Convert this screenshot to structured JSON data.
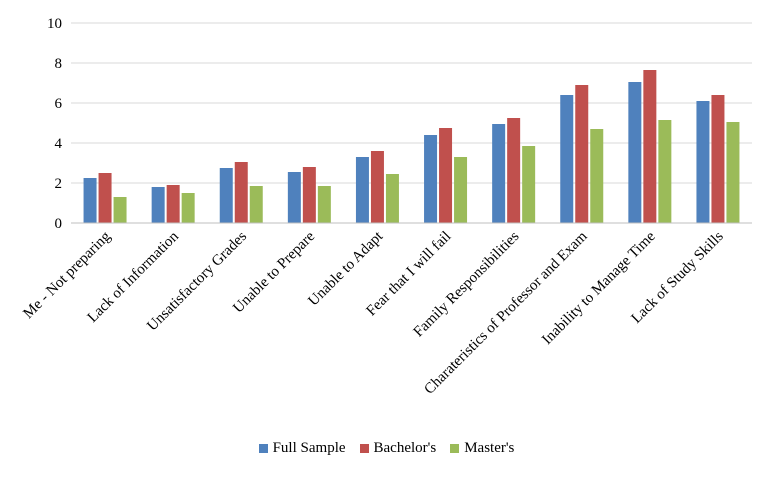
{
  "chart_data": {
    "type": "bar",
    "title": "",
    "xlabel": "",
    "ylabel": "",
    "ylim": [
      0,
      10
    ],
    "yticks": [
      "0",
      "2",
      "4",
      "6",
      "8",
      "10"
    ],
    "grid": true,
    "legend_position": "bottom",
    "categories": [
      "Me - Not preparing",
      "Lack of Information",
      "Unsatisfactory Grades",
      "Unable to Prepare",
      "Unable to Adapt",
      "Fear that I will fail",
      "Family Responsibilities",
      "Charateristics of Professor and Exam",
      "Inability to Manage Time",
      "Lack of Study Skills"
    ],
    "series": [
      {
        "name": "Full Sample",
        "color": "#4F81BD",
        "values": [
          2.25,
          1.8,
          2.75,
          2.55,
          3.3,
          4.4,
          4.95,
          6.4,
          7.05,
          6.1
        ]
      },
      {
        "name": "Bachelor's",
        "color": "#C0504D",
        "values": [
          2.5,
          1.9,
          3.05,
          2.8,
          3.6,
          4.75,
          5.25,
          6.9,
          7.65,
          6.4
        ]
      },
      {
        "name": "Master's",
        "color": "#9BBB59",
        "values": [
          1.3,
          1.5,
          1.85,
          1.85,
          2.45,
          3.3,
          3.85,
          4.7,
          5.15,
          5.05
        ]
      }
    ]
  }
}
